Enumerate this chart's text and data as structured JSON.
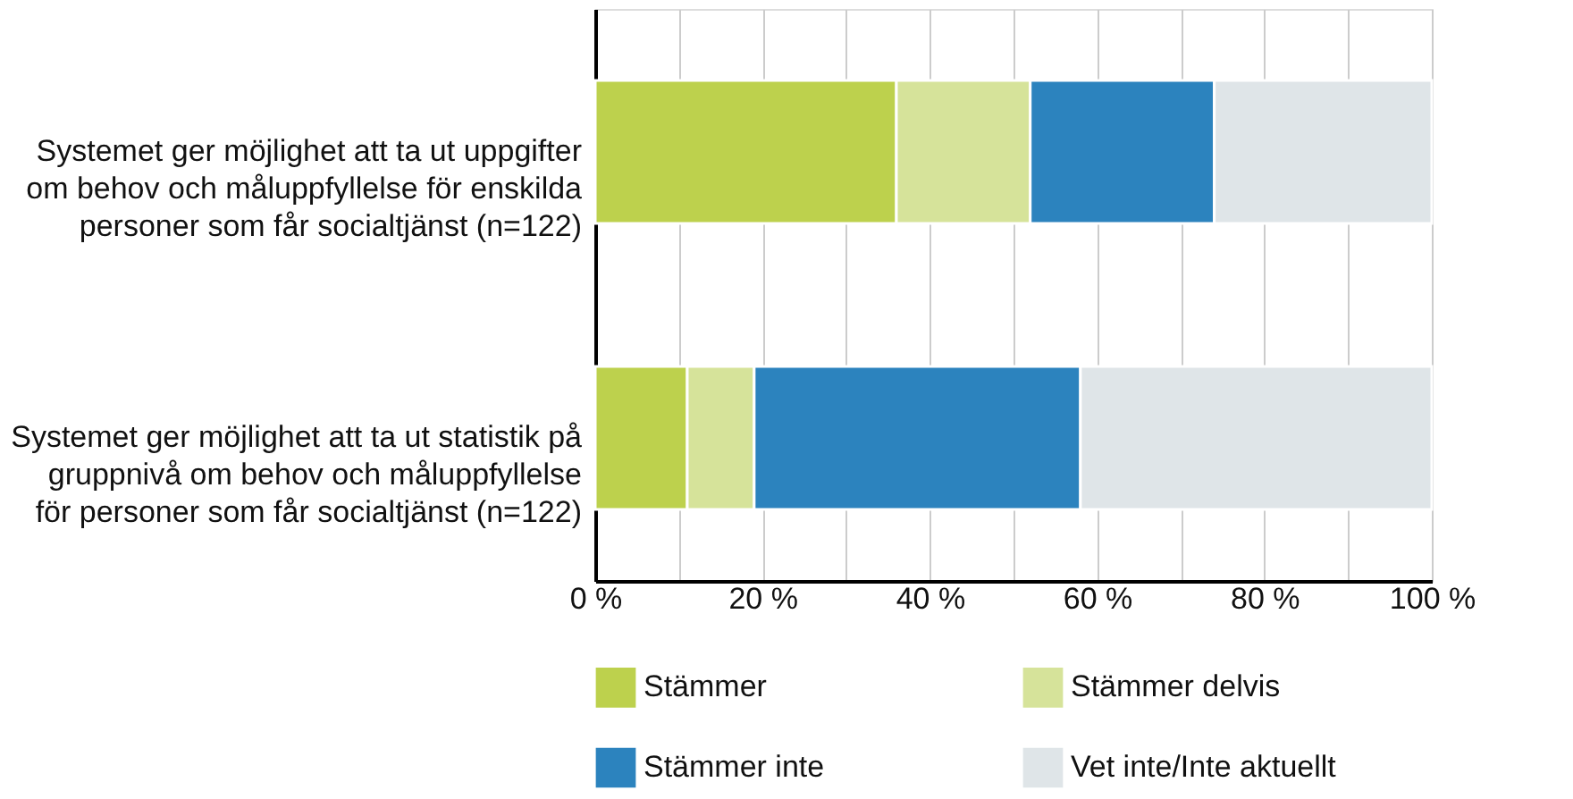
{
  "chart_data": {
    "type": "bar",
    "orientation": "horizontal",
    "stacked": true,
    "categories": [
      "Systemet ger möjlighet att ta ut uppgifter\nom behov och måluppfyllelse för enskilda\npersoner som får socialtjänst (n=122)",
      "Systemet ger möjlighet att ta ut statistik på\ngruppnivå om behov och måluppfyllelse\nför personer som får socialtjänst (n=122)"
    ],
    "series": [
      {
        "name": "Stämmer",
        "color": "#bdd14d",
        "values": [
          36,
          11
        ]
      },
      {
        "name": "Stämmer delvis",
        "color": "#d6e39a",
        "values": [
          16,
          8
        ]
      },
      {
        "name": "Stämmer inte",
        "color": "#2c83be",
        "values": [
          22,
          39
        ]
      },
      {
        "name": "Vet inte/Inte aktuellt",
        "color": "#dfe5e8",
        "values": [
          26,
          42
        ]
      }
    ],
    "xlim": [
      0,
      100
    ],
    "xticks": [
      {
        "value": 0,
        "label": "0 %"
      },
      {
        "value": 10,
        "label": null
      },
      {
        "value": 20,
        "label": "20 %"
      },
      {
        "value": 30,
        "label": null
      },
      {
        "value": 40,
        "label": "40 %"
      },
      {
        "value": 50,
        "label": null
      },
      {
        "value": 60,
        "label": "60 %"
      },
      {
        "value": 70,
        "label": null
      },
      {
        "value": 80,
        "label": "80 %"
      },
      {
        "value": 90,
        "label": null
      },
      {
        "value": 100,
        "label": "100 %"
      }
    ],
    "grid": "x",
    "legend": "bottom"
  }
}
